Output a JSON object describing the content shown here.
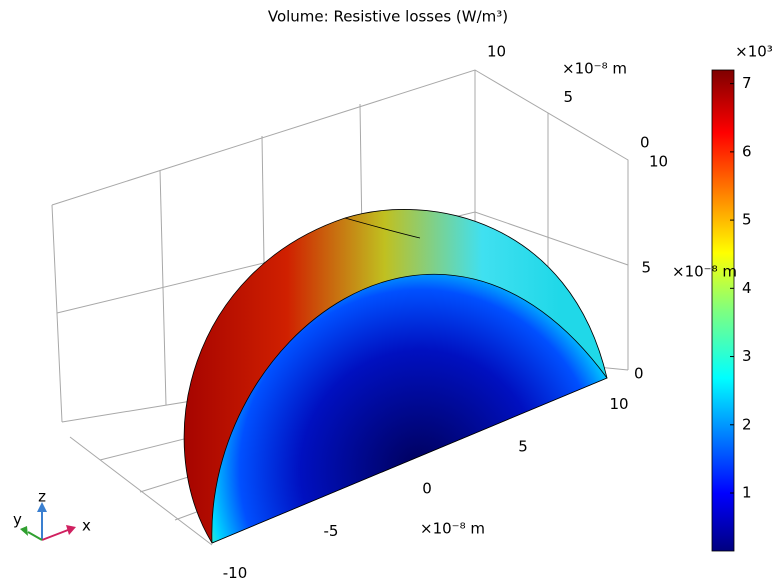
{
  "chart_data": {
    "type": "surface3d",
    "title": "Volume: Resistive losses (W/m³)",
    "colorbar": {
      "multiplier": "×10³",
      "lim": [
        0.15,
        7.2
      ],
      "ticks": [
        1,
        2,
        3,
        4,
        5,
        6,
        7
      ]
    },
    "x_axis": {
      "unit": "×10⁻⁸ m",
      "ticks": [
        -10,
        -5,
        0,
        5,
        10
      ]
    },
    "y_axis": {
      "unit": "×10⁻⁸ m",
      "ticks": [
        0,
        5,
        10
      ]
    },
    "z_axis": {
      "unit": "×10⁻⁸ m",
      "ticks": [
        0,
        5,
        10
      ]
    },
    "triad": [
      "x",
      "y",
      "z"
    ]
  }
}
